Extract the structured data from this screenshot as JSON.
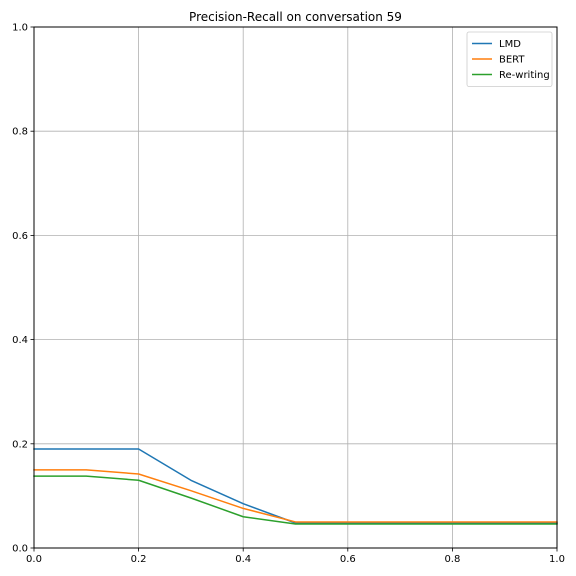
{
  "chart_data": {
    "type": "line",
    "title": "Precision-Recall on conversation 59",
    "xlabel": "",
    "ylabel": "",
    "xlim": [
      0.0,
      1.0
    ],
    "ylim": [
      0.0,
      1.0
    ],
    "grid": true,
    "legend_position": "top-right",
    "x_ticks": [
      "0.0",
      "0.2",
      "0.4",
      "0.6",
      "0.8",
      "1.0"
    ],
    "y_ticks": [
      "0.0",
      "0.2",
      "0.4",
      "0.6",
      "0.8",
      "1.0"
    ],
    "x": [
      0.0,
      0.1,
      0.2,
      0.3,
      0.4,
      0.5,
      0.6,
      0.7,
      0.8,
      0.9,
      1.0
    ],
    "series": [
      {
        "name": "LMD",
        "color": "#1f77b4",
        "values": [
          0.19,
          0.19,
          0.19,
          0.13,
          0.085,
          0.048,
          0.048,
          0.048,
          0.048,
          0.048,
          0.048
        ]
      },
      {
        "name": "BERT",
        "color": "#ff7f0e",
        "values": [
          0.15,
          0.15,
          0.142,
          0.11,
          0.076,
          0.05,
          0.05,
          0.05,
          0.05,
          0.05,
          0.05
        ]
      },
      {
        "name": "Re-writing",
        "color": "#2ca02c",
        "values": [
          0.138,
          0.138,
          0.13,
          0.096,
          0.06,
          0.046,
          0.046,
          0.046,
          0.046,
          0.046,
          0.046
        ]
      }
    ]
  }
}
